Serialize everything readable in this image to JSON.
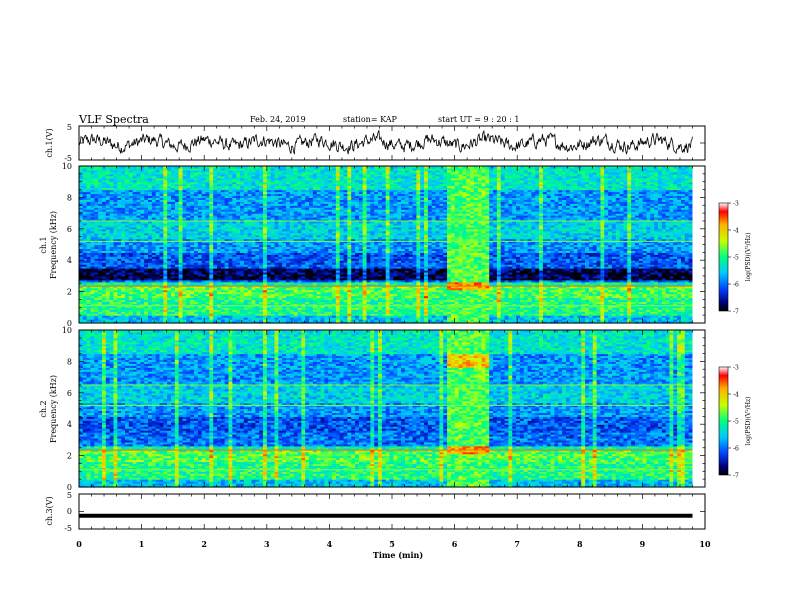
{
  "header": {
    "title": "VLF Spectra",
    "date": "Feb. 24, 2019",
    "station": "station= KAP",
    "start": "start  UT =   9 : 20 : 1"
  },
  "chart_data": [
    {
      "id": "ch1_waveform",
      "type": "line",
      "ylabel": "ch.1(V)",
      "ylim": [
        -5,
        5
      ],
      "y_ticks": [
        "5",
        "-5"
      ],
      "x_range_min": [
        0,
        9.8
      ],
      "description_series": "noisy waveform around 0 V"
    },
    {
      "id": "ch1_spectrogram",
      "type": "heatmap",
      "ylabel_line1": "ch.1",
      "ylabel_line2": "Frequency  (kHz)",
      "ylim": [
        0,
        10
      ],
      "y_ticks": [
        "0",
        "2",
        "4",
        "6",
        "8",
        "10"
      ],
      "x_range_min": [
        0,
        9.8
      ],
      "burst_window_min": [
        5.85,
        6.5
      ],
      "colorbar": {
        "label": "log(PSD)(V²/Hz)",
        "range": [
          -7,
          -3
        ],
        "ticks": [
          "-3",
          "-4",
          "-5",
          "-6",
          "-7"
        ]
      }
    },
    {
      "id": "ch2_spectrogram",
      "type": "heatmap",
      "ylabel_line1": "ch.2",
      "ylabel_line2": "Frequency  (kHz)",
      "ylim": [
        0,
        10
      ],
      "y_ticks": [
        "0",
        "2",
        "4",
        "6",
        "8",
        "10"
      ],
      "x_range_min": [
        0,
        9.8
      ],
      "burst_window_min": [
        5.85,
        6.5
      ],
      "colorbar": {
        "label": "log(PSD)(V²/Hz)",
        "range": [
          -7,
          -3
        ],
        "ticks": [
          "-3",
          "-4",
          "-5",
          "-6",
          "-7"
        ]
      }
    },
    {
      "id": "ch3_waveform",
      "type": "line",
      "ylabel": "ch.3(V)",
      "ylim": [
        -5,
        5
      ],
      "y_ticks": [
        "5",
        "0",
        "-5"
      ],
      "x_range_min": [
        0,
        9.8
      ],
      "constant_value": -1.2
    }
  ],
  "xaxis": {
    "label": "Time  (min)",
    "ticks": [
      "0",
      "1",
      "2",
      "3",
      "4",
      "5",
      "6",
      "7",
      "8",
      "9",
      "10"
    ],
    "range": [
      0,
      10
    ]
  }
}
